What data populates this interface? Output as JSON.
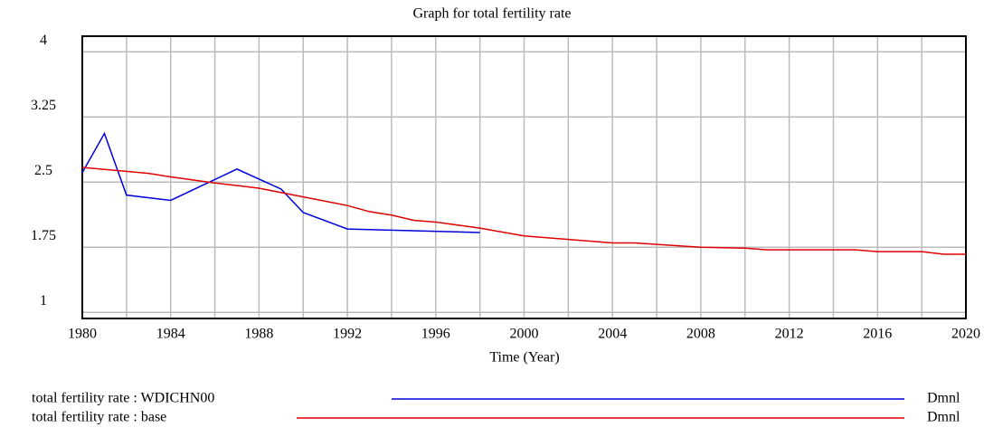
{
  "chart_data": {
    "type": "line",
    "title": "Graph for total fertility rate",
    "xlabel": "Time (Year)",
    "xlim": [
      1980,
      2020
    ],
    "ylim": [
      0.93,
      4.18
    ],
    "xticks": [
      1980,
      1984,
      1988,
      1992,
      1996,
      2000,
      2004,
      2008,
      2012,
      2016,
      2020
    ],
    "xgrid": [
      1980,
      1982,
      1984,
      1986,
      1988,
      1990,
      1992,
      1994,
      1996,
      1998,
      2000,
      2002,
      2004,
      2006,
      2008,
      2010,
      2012,
      2014,
      2016,
      2018,
      2020
    ],
    "yticks": [
      1,
      1.75,
      2.5,
      3.25,
      4
    ],
    "grid": true,
    "series": [
      {
        "name": "total fertility rate : WDICHN00",
        "unit": "Dmnl",
        "color": "#0000dd",
        "x": [
          1980,
          1981,
          1982,
          1984,
          1987,
          1989,
          1990,
          1992,
          1998
        ],
        "values": [
          2.61,
          3.06,
          2.35,
          2.29,
          2.65,
          2.42,
          2.15,
          1.96,
          1.92
        ]
      },
      {
        "name": "total fertility rate : base",
        "unit": "Dmnl",
        "color": "#dd0000",
        "x": [
          1980,
          1983,
          1984,
          1986,
          1988,
          1990,
          1992,
          1993,
          1994,
          1995,
          1996,
          1998,
          2000,
          2002,
          2004,
          2005,
          2008,
          2010,
          2011,
          2015,
          2016,
          2018,
          2019,
          2020
        ],
        "values": [
          2.67,
          2.6,
          2.56,
          2.49,
          2.43,
          2.33,
          2.23,
          2.16,
          2.12,
          2.06,
          2.04,
          1.97,
          1.88,
          1.84,
          1.8,
          1.8,
          1.75,
          1.74,
          1.72,
          1.72,
          1.7,
          1.7,
          1.67,
          1.67
        ]
      }
    ]
  }
}
